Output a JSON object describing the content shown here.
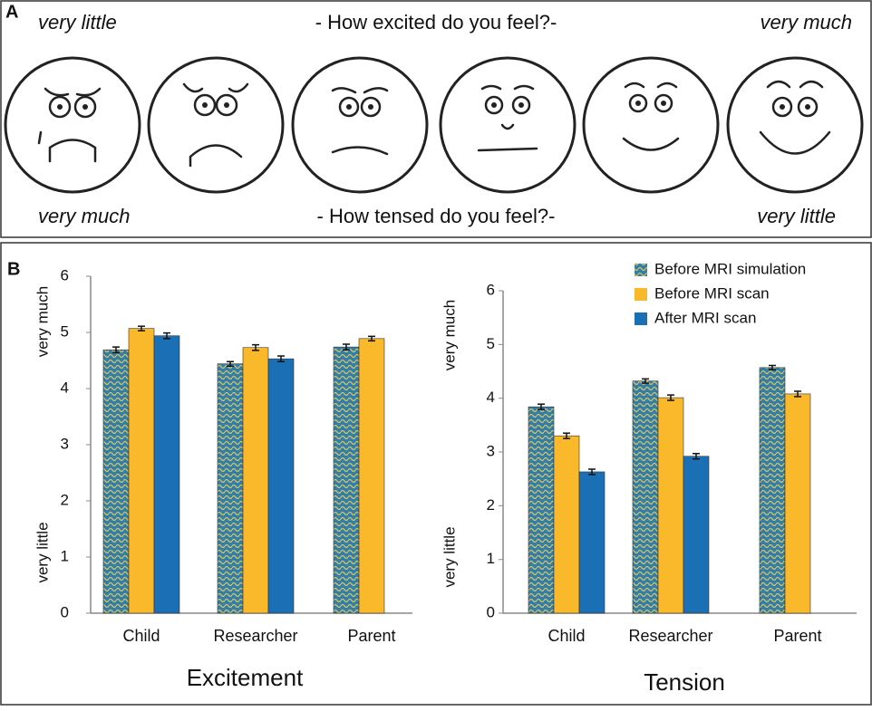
{
  "panel_a": {
    "label": "A",
    "top_left": "very little",
    "top_center": "- How excited do you feel?-",
    "top_right": "very much",
    "bottom_left": "very much",
    "bottom_center": "- How tensed do you feel?-",
    "bottom_right": "very little"
  },
  "panel_b": {
    "label": "B"
  },
  "chart_data": [
    {
      "type": "bar",
      "x_label": "Excitement",
      "y_label_top": "very much",
      "y_label_bottom": "very little",
      "categories": [
        "Child",
        "Researcher",
        "Parent"
      ],
      "ylim": [
        0,
        6
      ],
      "yticks": [
        0,
        1,
        2,
        3,
        4,
        5,
        6
      ],
      "series": [
        {
          "name": "Before MRI simulation",
          "color": "#3f8fb0",
          "values": [
            4.69,
            4.44,
            4.74
          ],
          "errors": [
            0.05,
            0.04,
            0.05
          ]
        },
        {
          "name": "Before MRI scan",
          "color": "#f9b92b",
          "values": [
            5.07,
            4.73,
            4.89
          ],
          "errors": [
            0.04,
            0.05,
            0.04
          ]
        },
        {
          "name": "After MRI scan",
          "color": "#1b6fb5",
          "values": [
            4.94,
            4.53,
            null
          ],
          "errors": [
            0.05,
            0.05,
            null
          ]
        }
      ]
    },
    {
      "type": "bar",
      "x_label": "Tension",
      "y_label_top": "very much",
      "y_label_bottom": "very little",
      "legend": "top-right",
      "categories": [
        "Child",
        "Researcher",
        "Parent"
      ],
      "ylim": [
        0,
        6
      ],
      "yticks": [
        0,
        1,
        2,
        3,
        4,
        5,
        6
      ],
      "series": [
        {
          "name": "Before MRI simulation",
          "color": "#3f8fb0",
          "values": [
            3.84,
            4.32,
            4.57
          ],
          "errors": [
            0.05,
            0.04,
            0.04
          ]
        },
        {
          "name": "Before MRI scan",
          "color": "#f9b92b",
          "values": [
            3.3,
            4.01,
            4.08
          ],
          "errors": [
            0.05,
            0.05,
            0.05
          ]
        },
        {
          "name": "After MRI scan",
          "color": "#1b6fb5",
          "values": [
            2.63,
            2.92,
            null
          ],
          "errors": [
            0.05,
            0.05,
            null
          ]
        }
      ]
    }
  ]
}
